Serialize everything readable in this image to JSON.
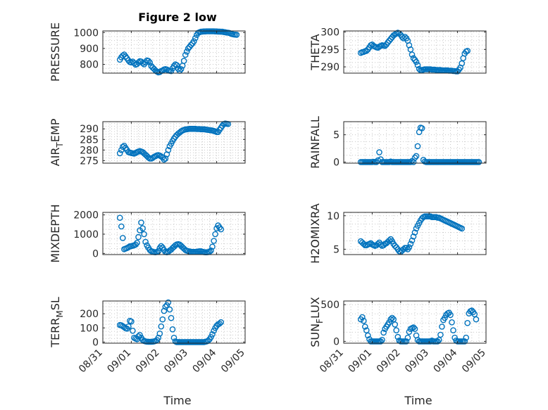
{
  "figure": {
    "title": "Figure 2 low",
    "xlabel": "Time",
    "xtick_labels": [
      "08/31",
      "09/01",
      "09/02",
      "09/03",
      "09/04",
      "09/05"
    ],
    "marker_color": "#0072BD"
  },
  "chart_data": [
    {
      "type": "scatter",
      "ylabel": "PRESSURE",
      "ylabel_sub": null,
      "ylim": [
        745,
        1010
      ],
      "yticks": [
        800,
        900,
        1000
      ],
      "ytick_labels": [
        "800",
        "900",
        "1000"
      ],
      "grid": true,
      "x_start": 0.6,
      "x_step": 0.05,
      "values": [
        830,
        845,
        855,
        862,
        850,
        838,
        825,
        815,
        812,
        818,
        808,
        798,
        802,
        812,
        820,
        818,
        808,
        800,
        812,
        825,
        822,
        812,
        790,
        780,
        772,
        762,
        755,
        750,
        752,
        758,
        762,
        768,
        770,
        768,
        762,
        760,
        758,
        775,
        790,
        800,
        795,
        772,
        760,
        770,
        792,
        822,
        860,
        880,
        900,
        910,
        922,
        932,
        945,
        965,
        985,
        998,
        1002,
        1005,
        1006,
        1007,
        1007,
        1008,
        1008,
        1008,
        1008,
        1008,
        1008,
        1007,
        1007,
        1006,
        1006,
        1005,
        1005,
        1003,
        1002,
        1000,
        999,
        997,
        993,
        990,
        988,
        987,
        986
      ]
    },
    {
      "type": "scatter",
      "ylabel": "THETA",
      "ylabel_sub": null,
      "ylim": [
        288.2,
        300.3
      ],
      "yticks": [
        290,
        295,
        300
      ],
      "ytick_labels": [
        "290",
        "295",
        "300"
      ],
      "grid": true,
      "x_start": 0.6,
      "x_step": 0.05,
      "values": [
        294,
        294.2,
        294.3,
        294.5,
        294.6,
        295,
        295.6,
        296.2,
        296.4,
        296,
        295.8,
        295.6,
        295.5,
        295.8,
        296,
        296.2,
        296.1,
        296,
        296.4,
        297,
        297.5,
        298,
        298.5,
        299,
        299.3,
        299.6,
        299.8,
        299.6,
        299.2,
        298.6,
        298.2,
        298.6,
        298.2,
        297.5,
        296.2,
        295,
        293.5,
        292.5,
        292,
        291.4,
        290.5,
        289.4,
        289,
        289,
        289.2,
        289.3,
        289.3,
        289.3,
        289.3,
        289.3,
        289.2,
        289.2,
        289.2,
        289.1,
        289.1,
        289.1,
        289.1,
        289,
        289,
        289,
        289,
        289,
        288.9,
        288.9,
        288.9,
        288.8,
        288.8,
        288.7,
        288.7,
        289.2,
        289.8,
        291,
        292.5,
        293.8,
        294.4,
        294.6
      ]
    },
    {
      "type": "scatter",
      "ylabel": "AIR",
      "ylabel_sub": "T",
      "ylabel_rest": "EMP",
      "ylim": [
        273.8,
        293.4
      ],
      "yticks": [
        275,
        280,
        285,
        290
      ],
      "ytick_labels": [
        "275",
        "280",
        "285",
        "290"
      ],
      "grid": true,
      "x_start": 0.6,
      "x_step": 0.05,
      "values": [
        278.5,
        280,
        281.5,
        282,
        281,
        280,
        279,
        278.8,
        278.6,
        278.5,
        278.3,
        278.6,
        279,
        279.3,
        279.5,
        279.3,
        279,
        278.4,
        277.8,
        277.2,
        276.5,
        276,
        276,
        276.3,
        276.8,
        277.1,
        277.5,
        277.6,
        277.4,
        277,
        276.5,
        275.5,
        276,
        278,
        280,
        281.8,
        283,
        284.3,
        285.4,
        286.3,
        287.1,
        287.8,
        288.3,
        288.8,
        289.2,
        289.5,
        289.7,
        289.8,
        289.9,
        290,
        290,
        290,
        290,
        290,
        289.9,
        289.9,
        289.9,
        289.8,
        289.8,
        289.8,
        289.7,
        289.6,
        289.5,
        289.4,
        289.3,
        289.2,
        289,
        288.8,
        288.5,
        288.5,
        289.5,
        290.5,
        291.5,
        292.3,
        292.5,
        292.4,
        292.3
      ]
    },
    {
      "type": "scatter",
      "ylabel": "RAINFALL",
      "ylabel_sub": null,
      "ylim": [
        -0.2,
        7.4
      ],
      "yticks": [
        0,
        5
      ],
      "ytick_labels": [
        "0",
        "5"
      ],
      "grid": true,
      "x_start": 0.6,
      "x_step": 0.05,
      "values": [
        0,
        0,
        0,
        0,
        0,
        0,
        0,
        0,
        0,
        0.05,
        0,
        0,
        0.3,
        1.8,
        0.5,
        0,
        0,
        0,
        0,
        0,
        0,
        0.1,
        0,
        0,
        0,
        0,
        0,
        0,
        0,
        0,
        0,
        0,
        0,
        0,
        0,
        0,
        0.2,
        0,
        0.8,
        1.1,
        2.9,
        5.5,
        6.3,
        6.2,
        0.4,
        0.1,
        0,
        0,
        0,
        0,
        0,
        0,
        0,
        0,
        0,
        0,
        0,
        0,
        0,
        0,
        0,
        0,
        0,
        0,
        0,
        0,
        0,
        0,
        0,
        0,
        0,
        0,
        0,
        0,
        0,
        0,
        0,
        0,
        0,
        0,
        0,
        0,
        0,
        0
      ]
    },
    {
      "type": "scatter",
      "ylabel": "MIXDEPTH",
      "ylabel_sub": null,
      "ylim": [
        -60,
        2130
      ],
      "yticks": [
        0,
        1000,
        2000
      ],
      "ytick_labels": [
        "0",
        "1000",
        "2000"
      ],
      "grid": true,
      "x_start": 0.6,
      "x_step": 0.05,
      "values": [
        1850,
        1400,
        800,
        220,
        250,
        280,
        320,
        370,
        380,
        400,
        420,
        460,
        550,
        850,
        1200,
        1600,
        1300,
        1000,
        600,
        420,
        300,
        180,
        120,
        90,
        70,
        60,
        80,
        120,
        280,
        380,
        300,
        180,
        80,
        60,
        90,
        150,
        200,
        280,
        350,
        420,
        470,
        480,
        460,
        400,
        320,
        250,
        180,
        140,
        120,
        100,
        90,
        80,
        80,
        80,
        90,
        100,
        110,
        110,
        90,
        70,
        60,
        60,
        70,
        90,
        150,
        350,
        650,
        1000,
        1300,
        1450,
        1350,
        1250
      ]
    },
    {
      "type": "scatter",
      "ylabel": "H2OMIXRA",
      "ylabel_sub": null,
      "ylim": [
        4.2,
        10.5
      ],
      "yticks": [
        5,
        10
      ],
      "ytick_labels": [
        "5",
        "10"
      ],
      "grid": true,
      "x_start": 0.6,
      "x_step": 0.05,
      "values": [
        6.2,
        6,
        5.8,
        5.6,
        5.6,
        5.7,
        5.8,
        5.9,
        5.7,
        5.6,
        5.5,
        5.6,
        5.8,
        6,
        5.7,
        5.5,
        5.6,
        5.8,
        5.9,
        6.1,
        6.3,
        6.5,
        6.2,
        5.8,
        5.5,
        5.3,
        5,
        4.7,
        4.6,
        4.8,
        5,
        5.2,
        5.2,
        5,
        5.3,
        5.8,
        6.3,
        6.9,
        7.5,
        8.1,
        8.5,
        8.9,
        9.3,
        9.6,
        9.8,
        9.9,
        9.9,
        9.9,
        9.9,
        9.9,
        9.8,
        9.8,
        9.8,
        9.8,
        9.7,
        9.7,
        9.6,
        9.5,
        9.4,
        9.3,
        9.2,
        9.1,
        9,
        8.9,
        8.8,
        8.7,
        8.6,
        8.5,
        8.4,
        8.3,
        8.2,
        8.1
      ]
    },
    {
      "type": "scatter",
      "ylabel": "TERR",
      "ylabel_sub": "M",
      "ylabel_rest": "SL",
      "ylim": [
        -8,
        290
      ],
      "yticks": [
        0,
        100,
        200
      ],
      "ytick_labels": [
        "0",
        "100",
        "200"
      ],
      "grid": true,
      "x_start": 0.6,
      "x_step": 0.05,
      "values": [
        120,
        118,
        112,
        105,
        98,
        95,
        110,
        150,
        145,
        80,
        30,
        25,
        20,
        40,
        50,
        30,
        15,
        8,
        5,
        3,
        2,
        2,
        2,
        3,
        5,
        8,
        15,
        30,
        60,
        110,
        160,
        220,
        250,
        260,
        280,
        230,
        170,
        90,
        30,
        5,
        0,
        0,
        0,
        0,
        0,
        0,
        0,
        0,
        0,
        0,
        0,
        0,
        0,
        0,
        0,
        0,
        0,
        0,
        0,
        0,
        2,
        5,
        10,
        20,
        35,
        55,
        80,
        100,
        115,
        125,
        130,
        140
      ]
    },
    {
      "type": "scatter",
      "ylabel": "SUN",
      "ylabel_sub": "F",
      "ylabel_rest": "LUX",
      "ylim": [
        -25,
        550
      ],
      "yticks": [
        0,
        500
      ],
      "ytick_labels": [
        "0",
        "500"
      ],
      "grid": true,
      "x_start": 0.6,
      "x_step": 0.05,
      "values": [
        300,
        330,
        280,
        200,
        150,
        80,
        30,
        0,
        0,
        0,
        0,
        0,
        0,
        0,
        0,
        20,
        120,
        170,
        200,
        230,
        260,
        300,
        320,
        300,
        230,
        150,
        60,
        10,
        0,
        0,
        0,
        0,
        0,
        50,
        130,
        170,
        180,
        190,
        170,
        80,
        20,
        0,
        0,
        0,
        0,
        0,
        0,
        0,
        0,
        0,
        10,
        0,
        0,
        0,
        0,
        20,
        90,
        200,
        290,
        320,
        360,
        380,
        390,
        360,
        260,
        150,
        50,
        10,
        0,
        0,
        0,
        0,
        0,
        0,
        50,
        250,
        380,
        410,
        420,
        400,
        370,
        300
      ]
    }
  ]
}
